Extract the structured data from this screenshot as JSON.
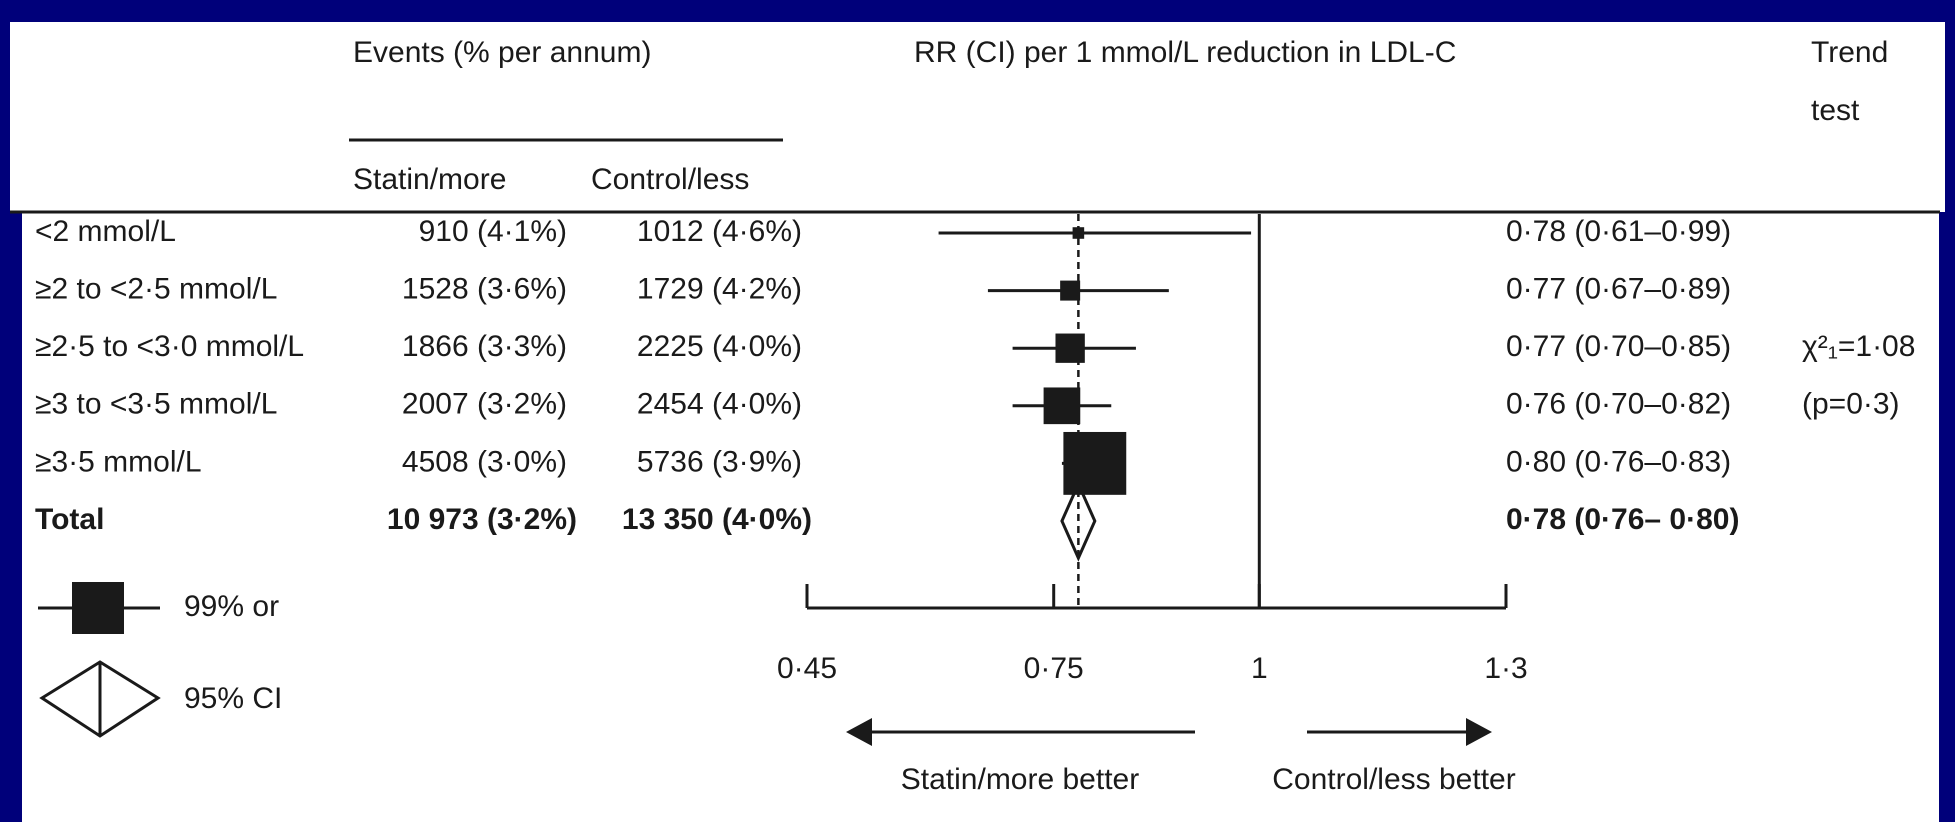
{
  "chart_data": {
    "type": "forest",
    "headers": {
      "events": "Events (% per annum)",
      "statin": "Statin/more",
      "control": "Control/less",
      "rr": "RR (CI) per 1 mmol/L reduction in LDL-C",
      "trend": [
        "Trend",
        "test"
      ]
    },
    "categories": [
      "<2 mmol/L",
      "≥2 to <2·5 mmol/L",
      "≥2·5 to <3·0 mmol/L",
      "≥3 to <3·5 mmol/L",
      "≥3·5 mmol/L"
    ],
    "statin_events": [
      "910 (4·1%)",
      "1528 (3·6%)",
      "1866 (3·3%)",
      "2007 (3·2%)",
      "4508 (3·0%)"
    ],
    "control_events": [
      "1012 (4·6%)",
      "1729 (4·2%)",
      "2225 (4·0%)",
      "2454 (4·0%)",
      "5736 (3·9%)"
    ],
    "values": [
      0.78,
      0.77,
      0.77,
      0.76,
      0.8
    ],
    "ci_low": [
      0.61,
      0.67,
      0.7,
      0.7,
      0.76
    ],
    "ci_high": [
      0.99,
      0.89,
      0.85,
      0.82,
      0.83
    ],
    "value_labels": [
      "0·78 (0·61–0·99)",
      "0·77 (0·67–0·89)",
      "0·77 (0·70–0·85)",
      "0·76 (0·70–0·82)",
      "0·80 (0·76–0·83)"
    ],
    "total": {
      "label": "Total",
      "statin": "10 973 (3·2%)",
      "control": "13 350 (4·0%)",
      "value": 0.78,
      "ci_low": 0.76,
      "ci_high": 0.8,
      "value_label": "0·78 (0·76– 0·80)"
    },
    "trend_test": [
      "χ²₁=1·08",
      "(p=0·3)"
    ],
    "reference": 1,
    "xlim": [
      0.45,
      1.3
    ],
    "xticks": [
      {
        "value": 0.45,
        "label": "0·45"
      },
      {
        "value": 0.75,
        "label": "0·75"
      },
      1,
      {
        "value": 1.3,
        "label": "1·3"
      }
    ],
    "legend": [
      "99% or",
      "95% CI"
    ],
    "arrows": [
      "Statin/more better",
      "Control/less better"
    ],
    "color": "#1a1a1a"
  }
}
